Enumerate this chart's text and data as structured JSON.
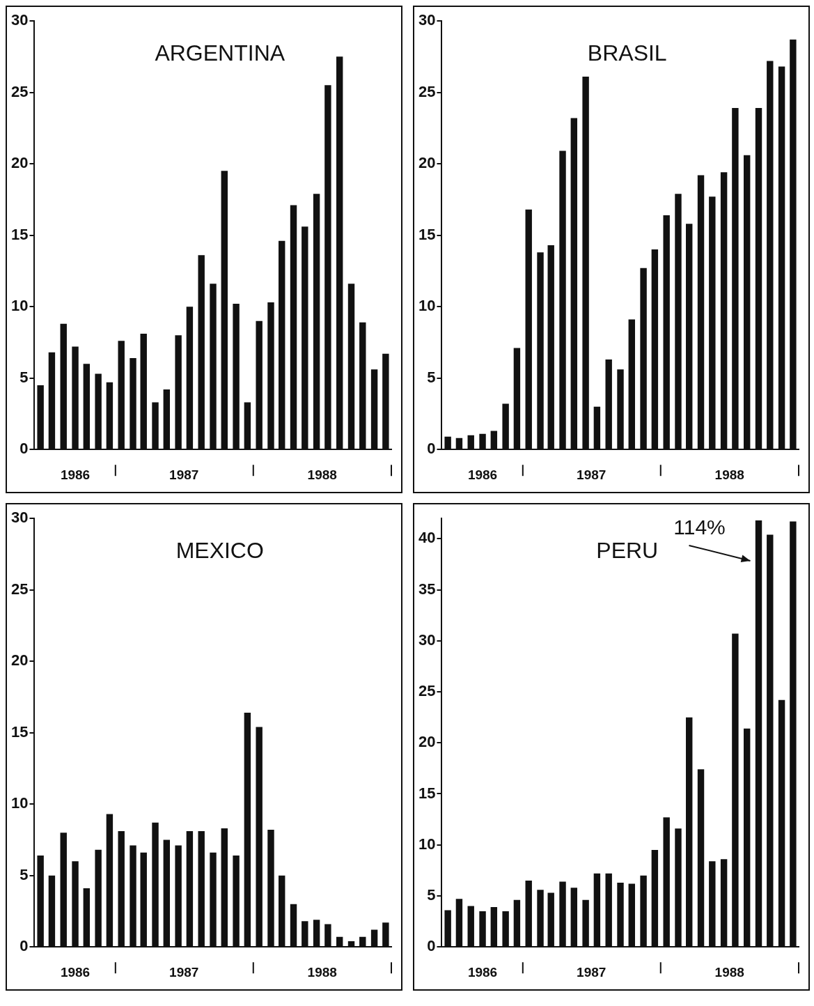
{
  "chart_data": [
    {
      "type": "bar",
      "title": "ARGENTINA",
      "color": "#111111",
      "x": [
        "1986-06",
        "1986-07",
        "1986-08",
        "1986-09",
        "1986-10",
        "1986-11",
        "1986-12",
        "1987-01",
        "1987-02",
        "1987-03",
        "1987-04",
        "1987-05",
        "1987-06",
        "1987-07",
        "1987-08",
        "1987-09",
        "1987-10",
        "1987-11",
        "1987-12",
        "1988-01",
        "1988-02",
        "1988-03",
        "1988-04",
        "1988-05",
        "1988-06",
        "1988-07",
        "1988-08",
        "1988-09",
        "1988-10",
        "1988-11",
        "1988-12"
      ],
      "values": [
        4.5,
        6.8,
        8.8,
        7.2,
        6.0,
        5.3,
        4.7,
        7.6,
        6.4,
        8.1,
        3.3,
        4.2,
        8.0,
        10.0,
        13.6,
        11.6,
        19.5,
        10.2,
        3.3,
        9.0,
        10.3,
        14.6,
        17.1,
        15.6,
        17.9,
        25.5,
        27.5,
        11.6,
        8.9,
        5.6,
        6.7
      ],
      "xlim": [
        "1986-05-16",
        "1988-12-16"
      ],
      "xticks": [
        {
          "value": "1986-09",
          "label": "1986"
        },
        {
          "value": "1987-06-16",
          "label": "1987"
        },
        {
          "value": "1988-06-16",
          "label": "1988"
        }
      ],
      "ylim": [
        0,
        30
      ],
      "yticks": [
        0,
        5,
        10,
        15,
        20,
        25,
        30
      ]
    },
    {
      "type": "bar",
      "title": "BRASIL",
      "color": "#111111",
      "x": [
        "1986-06",
        "1986-07",
        "1986-08",
        "1986-09",
        "1986-10",
        "1986-11",
        "1986-12",
        "1987-01",
        "1987-02",
        "1987-03",
        "1987-04",
        "1987-05",
        "1987-06",
        "1987-07",
        "1987-08",
        "1987-09",
        "1987-10",
        "1987-11",
        "1987-12",
        "1988-01",
        "1988-02",
        "1988-03",
        "1988-04",
        "1988-05",
        "1988-06",
        "1988-07",
        "1988-08",
        "1988-09",
        "1988-10",
        "1988-11",
        "1988-12"
      ],
      "values": [
        0.9,
        0.8,
        1.0,
        1.1,
        1.3,
        3.2,
        7.1,
        16.8,
        13.8,
        14.3,
        20.9,
        23.2,
        26.1,
        3.0,
        6.3,
        5.6,
        9.1,
        12.7,
        14.0,
        16.4,
        17.9,
        15.8,
        19.2,
        17.7,
        19.4,
        23.9,
        20.6,
        23.9,
        27.2,
        26.8,
        28.7
      ],
      "xlim": [
        "1986-05-16",
        "1988-12-16"
      ],
      "xticks": [
        {
          "value": "1986-09",
          "label": "1986"
        },
        {
          "value": "1987-06-16",
          "label": "1987"
        },
        {
          "value": "1988-06-16",
          "label": "1988"
        }
      ],
      "ylim": [
        0,
        30
      ],
      "yticks": [
        0,
        5,
        10,
        15,
        20,
        25,
        30
      ]
    },
    {
      "type": "bar",
      "title": "MEXICO",
      "color": "#111111",
      "x": [
        "1986-06",
        "1986-07",
        "1986-08",
        "1986-09",
        "1986-10",
        "1986-11",
        "1986-12",
        "1987-01",
        "1987-02",
        "1987-03",
        "1987-04",
        "1987-05",
        "1987-06",
        "1987-07",
        "1987-08",
        "1987-09",
        "1987-10",
        "1987-11",
        "1987-12",
        "1988-01",
        "1988-02",
        "1988-03",
        "1988-04",
        "1988-05",
        "1988-06",
        "1988-07",
        "1988-08",
        "1988-09",
        "1988-10",
        "1988-11",
        "1988-12"
      ],
      "values": [
        6.4,
        5.0,
        8.0,
        6.0,
        4.1,
        6.8,
        9.3,
        8.1,
        7.1,
        6.6,
        8.7,
        7.5,
        7.1,
        8.1,
        8.1,
        6.6,
        8.3,
        6.4,
        16.4,
        15.4,
        8.2,
        5.0,
        3.0,
        1.8,
        1.9,
        1.6,
        0.7,
        0.4,
        0.7,
        1.2,
        1.7
      ],
      "xlim": [
        "1986-05-16",
        "1988-12-16"
      ],
      "xticks": [
        {
          "value": "1986-09",
          "label": "1986"
        },
        {
          "value": "1987-06-16",
          "label": "1987"
        },
        {
          "value": "1988-06-16",
          "label": "1988"
        }
      ],
      "ylim": [
        0,
        30
      ],
      "yticks": [
        0,
        5,
        10,
        15,
        20,
        25,
        30
      ]
    },
    {
      "type": "bar",
      "title": "PERU",
      "color": "#111111",
      "x": [
        "1986-06",
        "1986-07",
        "1986-08",
        "1986-09",
        "1986-10",
        "1986-11",
        "1986-12",
        "1987-01",
        "1987-02",
        "1987-03",
        "1987-04",
        "1987-05",
        "1987-06",
        "1987-07",
        "1987-08",
        "1987-09",
        "1987-10",
        "1987-11",
        "1987-12",
        "1988-01",
        "1988-02",
        "1988-03",
        "1988-04",
        "1988-05",
        "1988-06",
        "1988-07",
        "1988-08",
        "1988-09",
        "1988-10",
        "1988-11",
        "1988-12"
      ],
      "values": [
        3.6,
        4.7,
        4.0,
        3.5,
        3.9,
        3.5,
        4.6,
        6.5,
        5.6,
        5.3,
        6.4,
        5.8,
        4.6,
        7.2,
        7.2,
        6.3,
        6.2,
        7.0,
        9.5,
        12.7,
        11.6,
        22.5,
        17.4,
        8.4,
        8.6,
        30.7,
        21.4,
        41.8,
        40.4,
        24.2,
        41.7
      ],
      "xlim": [
        "1986-05-16",
        "1988-12-16"
      ],
      "xticks": [
        {
          "value": "1986-09",
          "label": "1986"
        },
        {
          "value": "1987-06-16",
          "label": "1987"
        },
        {
          "value": "1988-06-16",
          "label": "1988"
        }
      ],
      "ylim": [
        0,
        42
      ],
      "yticks": [
        0,
        5,
        10,
        15,
        20,
        25,
        30,
        35,
        40
      ],
      "annotations": [
        {
          "text": "114%",
          "x": "1988-09",
          "y": 41.8
        }
      ]
    }
  ]
}
